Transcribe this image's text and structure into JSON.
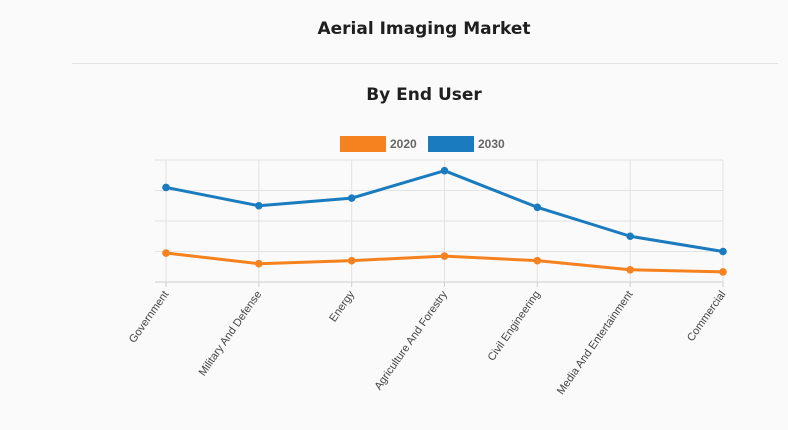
{
  "page": {
    "title": "Aerial Imaging Market"
  },
  "chart_data": {
    "type": "line",
    "title": "By End User",
    "categories": [
      "Government",
      "Military And Defense",
      "Energy",
      "Agriculture And Forestry",
      "Civil Engineering",
      "Media And Entertainment",
      "Commercial"
    ],
    "series": [
      {
        "name": "2020",
        "color": "#f5821f",
        "values": [
          0.95,
          0.6,
          0.7,
          0.85,
          0.7,
          0.4,
          0.33
        ]
      },
      {
        "name": "2030",
        "color": "#1a7bbf",
        "values": [
          3.1,
          2.5,
          2.75,
          3.65,
          2.45,
          1.5,
          1.0
        ]
      }
    ],
    "ylim": [
      0,
      4
    ],
    "y_tick_labels_shown": false,
    "grid": true,
    "legend_position": "top-center"
  }
}
